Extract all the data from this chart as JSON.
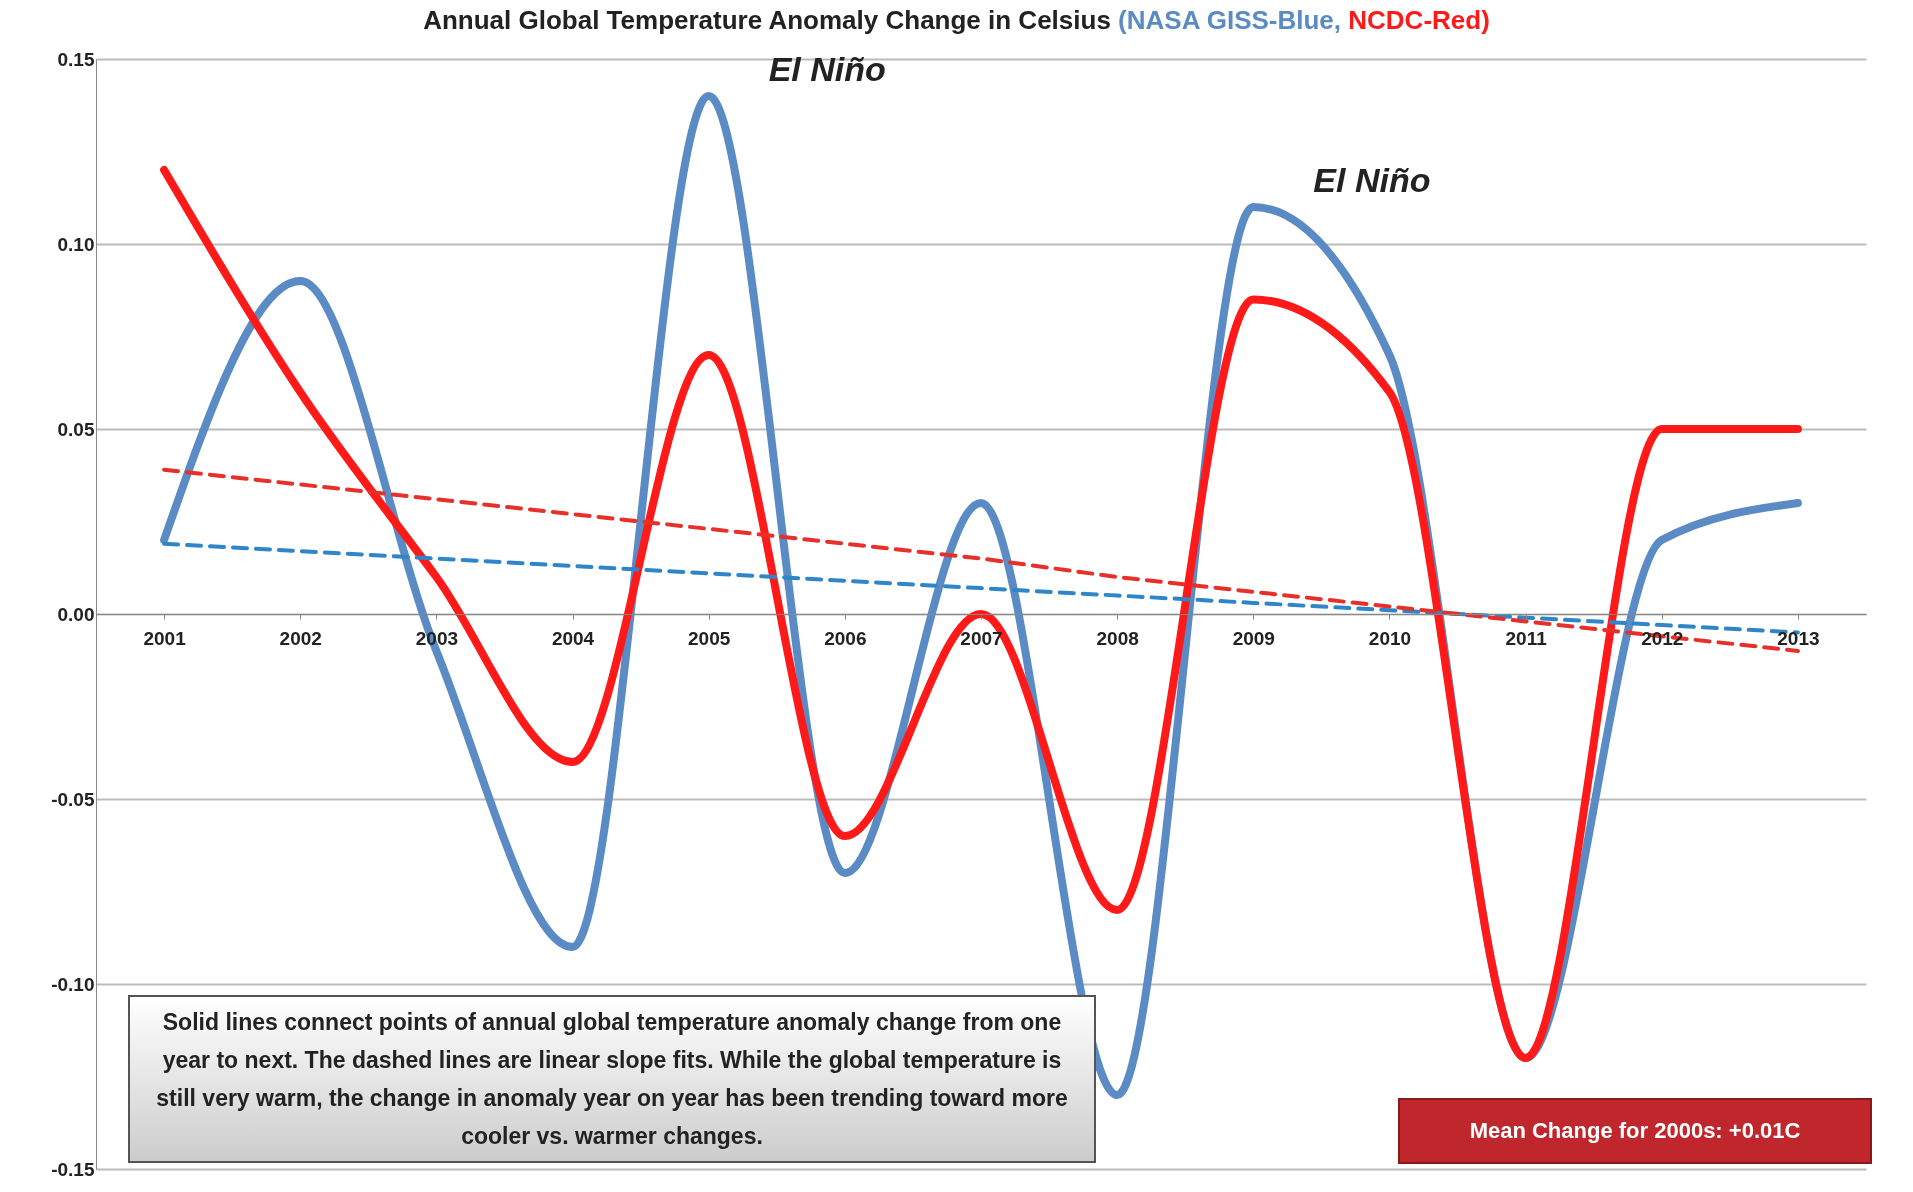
{
  "chart_data": {
    "type": "line",
    "title": "Annual Global Temperature Anomaly Change in Celsius",
    "categories": [
      "2001",
      "2002",
      "2003",
      "2004",
      "2005",
      "2006",
      "2007",
      "2008",
      "2009",
      "2010",
      "2011",
      "2012",
      "2013"
    ],
    "series": [
      {
        "name": "(NASA GISS-Blue,",
        "color": "#5b8bc4",
        "values": [
          0.02,
          0.09,
          -0.01,
          -0.09,
          0.14,
          -0.07,
          0.03,
          -0.13,
          0.11,
          0.07,
          -0.12,
          0.02,
          0.03
        ]
      },
      {
        "name": "NCDC-Red)",
        "color": "#ff1a1a",
        "values": [
          0.12,
          0.06,
          0.01,
          -0.04,
          0.07,
          -0.06,
          0.0,
          -0.08,
          0.085,
          0.06,
          -0.12,
          0.05,
          0.05
        ]
      },
      {
        "type": "line",
        "color": "#2e86c8",
        "line_style": "dashed",
        "values": [
          0.019,
          0.017,
          0.015,
          0.013,
          0.011,
          0.009,
          0.007,
          0.005,
          0.003,
          0.001,
          -0.001,
          -0.003,
          -0.005
        ]
      },
      {
        "type": "line",
        "color": "#e8302a",
        "line_style": "dashed",
        "values": [
          0.039,
          0.035,
          0.031,
          0.027,
          0.023,
          0.019,
          0.015,
          0.01,
          0.006,
          0.002,
          -0.002,
          -0.006,
          -0.01
        ]
      }
    ],
    "ylim": [
      -0.15,
      0.15
    ],
    "yticks": [
      {
        "value": -0.15,
        "label": "-0.15"
      },
      {
        "value": -0.1,
        "label": "-0.10"
      },
      {
        "value": -0.05,
        "label": "-0.05"
      },
      {
        "value": 0,
        "label": "0.00"
      },
      {
        "value": 0.05,
        "label": "0.05"
      },
      {
        "value": 0.1,
        "label": "0.10"
      },
      {
        "value": 0.15,
        "label": "0.15"
      }
    ],
    "grid": "y",
    "legend": "top",
    "line_style": "solid",
    "annotations": [
      {
        "text": "El Niño",
        "x": "2005",
        "y": 0.14
      },
      {
        "text": "El Niño",
        "x": "2009",
        "y": 0.11
      },
      "Solid lines connect points of annual global temperature anomaly change from one year to next.  The dashed lines are linear slope fits.  While the global temperature is still very warm, the change in anomaly year on year has been trending toward more cooler vs. warmer changes.",
      "Mean Change for 2000s:  +0.01C"
    ]
  }
}
